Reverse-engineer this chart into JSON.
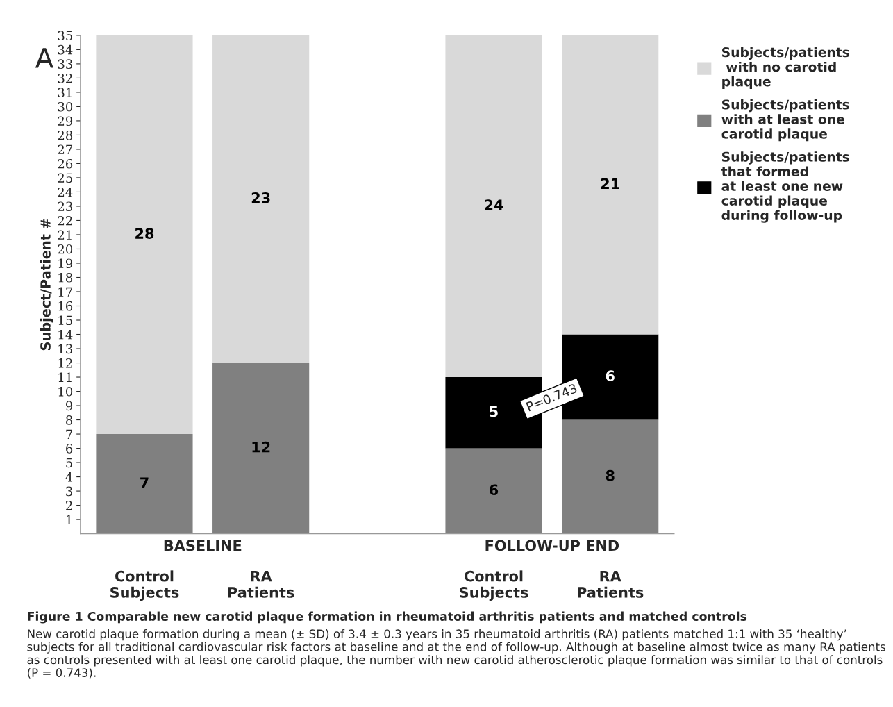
{
  "chart_data": {
    "type": "bar",
    "stacked": true,
    "title": "Figure 1 Comparable new carotid plaque formation in rheumatoid arthritis patients and matched controls",
    "ylabel": "Subject/Patient #",
    "categories": [
      "Control\nSubjects",
      "RA\nPatients",
      null,
      "Control\nSubjects",
      "RA\nPatients"
    ],
    "series": [
      {
        "name": "Subjects/patients\nwith at least one\ncarotid plaque",
        "color": "#808080",
        "values": [
          7,
          12,
          null,
          6,
          8
        ]
      },
      {
        "name": "Subjects/patients\nthat formed\nat least one new\ncarotid plaque\nduring follow-up",
        "color": "#000000",
        "values": [
          null,
          null,
          null,
          5,
          6
        ]
      },
      {
        "name": "Subjects/patients\n with no carotid\nplaque",
        "color": "#d9d9d9",
        "values": [
          28,
          23,
          null,
          24,
          21
        ]
      }
    ],
    "ylim": [
      0,
      35
    ],
    "yticks": [
      1,
      2,
      3,
      4,
      5,
      6,
      7,
      8,
      9,
      10,
      11,
      12,
      13,
      14,
      15,
      16,
      17,
      18,
      19,
      20,
      21,
      22,
      23,
      24,
      25,
      26,
      27,
      28,
      29,
      30,
      31,
      32,
      33,
      34,
      35
    ],
    "data_labels": true,
    "legend": "right",
    "annotations": [
      "A",
      "BASELINE",
      "FOLLOW-UP END",
      "P=0.743",
      "New carotid plaque formation during a mean (± SD) of 3.4 ± 0.3 years in 35 rheumatoid arthritis (RA) patients matched 1:1 with 35 ‘healthy’ subjects for all traditional cardiovascular risk factors at baseline and at the end of follow-up. Although at baseline almost twice as many RA patients as controls presented with at least one carotid plaque, the number with new carotid atherosclerotic plaque formation was similar to that of controls (P = 0.743)."
    ]
  }
}
